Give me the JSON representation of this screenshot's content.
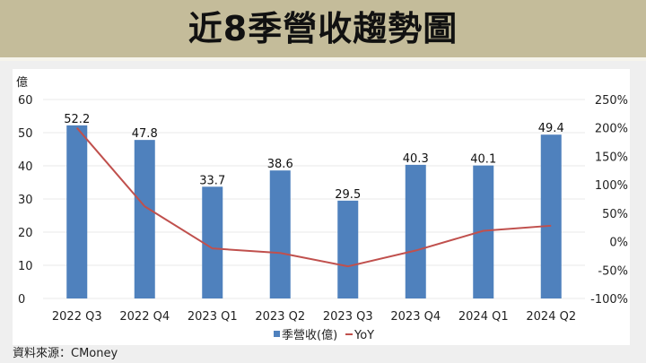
{
  "title": "近8季營收趨勢圖",
  "source": "資料來源：CMoney",
  "colors": {
    "banner": "#c4bc9a",
    "bar": "#4f81bd",
    "line": "#c0504d",
    "grid": "#e8e8e8",
    "text": "#222222"
  },
  "chart_data": {
    "type": "bar+line",
    "title": "近8季營收趨勢圖",
    "categories": [
      "2022 Q3",
      "2022 Q4",
      "2023 Q1",
      "2023 Q2",
      "2023 Q3",
      "2023 Q4",
      "2024 Q1",
      "2024 Q2"
    ],
    "series": [
      {
        "name": "季營收(億)",
        "type": "bar",
        "axis": "left",
        "values": [
          52.2,
          47.8,
          33.7,
          38.6,
          29.5,
          40.3,
          40.1,
          49.4
        ],
        "data_labels": [
          "52.2",
          "47.8",
          "33.7",
          "38.6",
          "29.5",
          "40.3",
          "40.1",
          "49.4"
        ]
      },
      {
        "name": "YoY",
        "type": "line",
        "axis": "right",
        "unit": "%",
        "values": [
          200,
          62,
          -12,
          -20,
          -43.5,
          -15.7,
          19,
          28
        ]
      }
    ],
    "left_axis": {
      "label": "億",
      "min": 0,
      "max": 60,
      "step": 10,
      "ticks": [
        "0",
        "10",
        "20",
        "30",
        "40",
        "50",
        "60"
      ]
    },
    "right_axis": {
      "min": -100,
      "max": 250,
      "step": 50,
      "ticks": [
        "-100%",
        "-50%",
        "0%",
        "50%",
        "100%",
        "150%",
        "200%",
        "250%"
      ]
    },
    "grid": true,
    "legend": {
      "position": "bottom",
      "entries": [
        "季營收(億)",
        "YoY"
      ]
    }
  }
}
